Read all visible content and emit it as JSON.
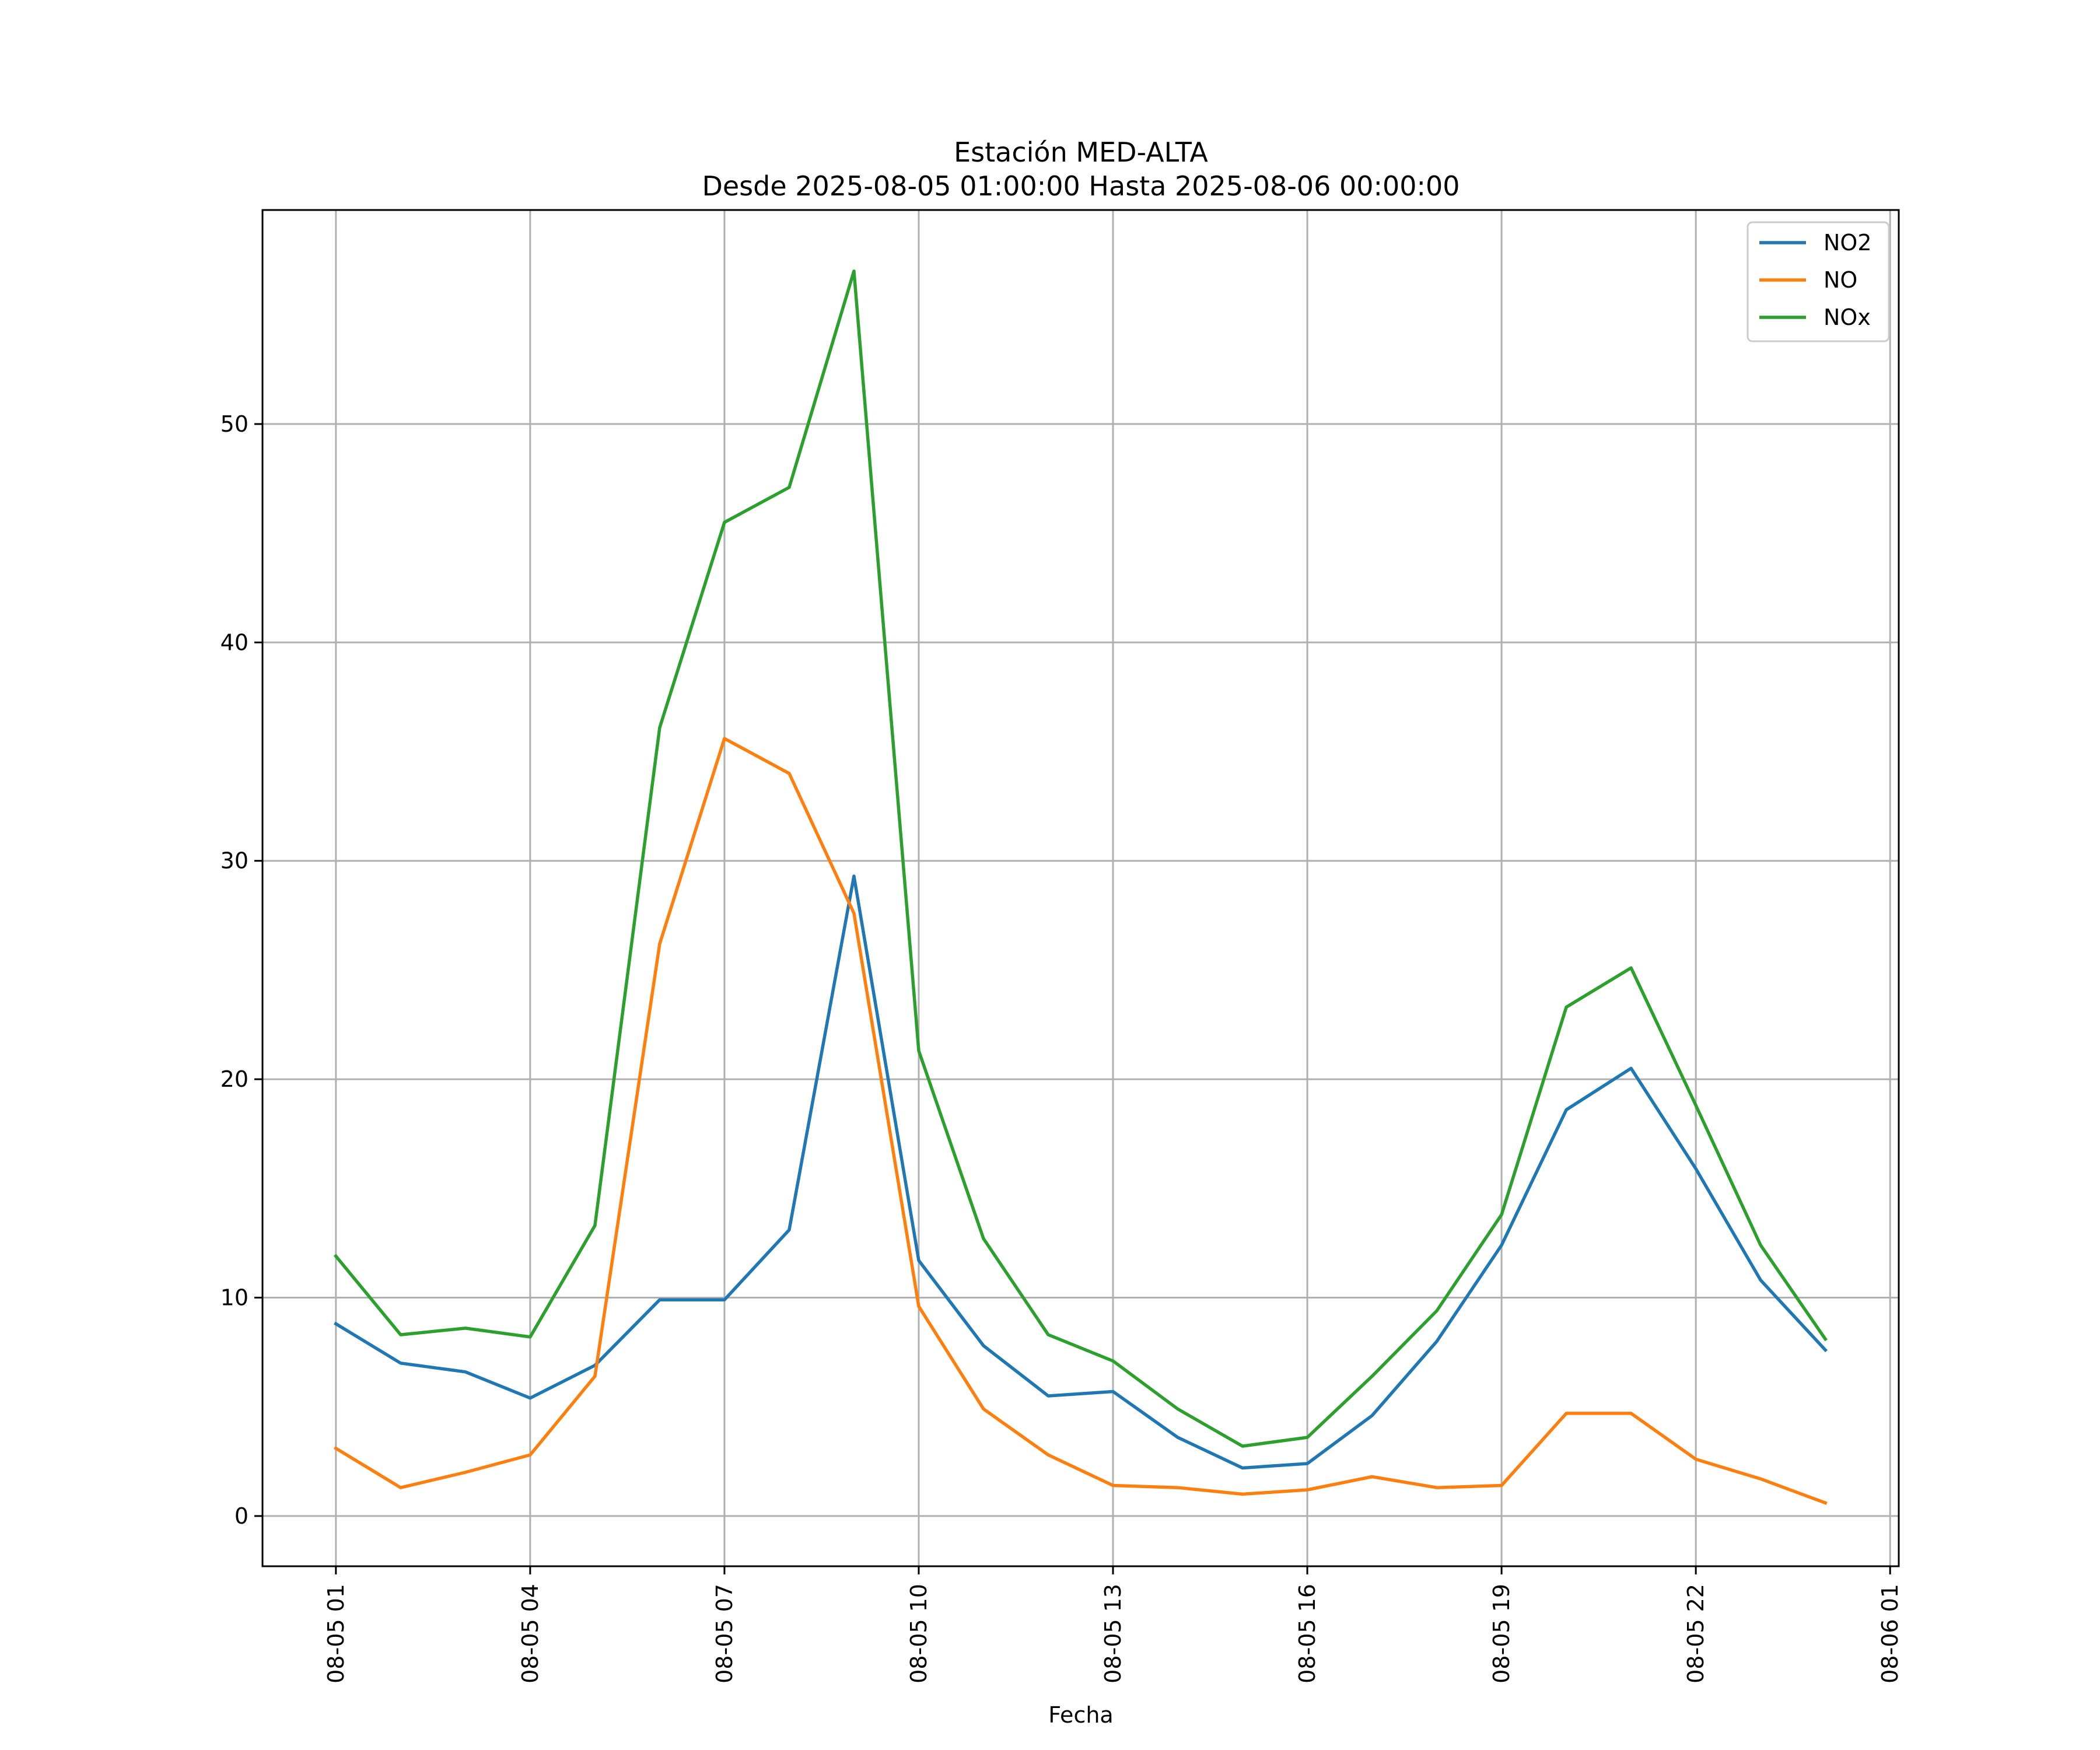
{
  "chart_data": {
    "type": "line",
    "title": "Estación MED-ALTA",
    "subtitle": "Desde 2025-08-05 01:00:00 Hasta 2025-08-06 00:00:00",
    "xlabel": "Fecha",
    "ylabel": "",
    "x": [
      "2025-08-05 01:00",
      "2025-08-05 02:00",
      "2025-08-05 03:00",
      "2025-08-05 04:00",
      "2025-08-05 05:00",
      "2025-08-05 06:00",
      "2025-08-05 07:00",
      "2025-08-05 08:00",
      "2025-08-05 09:00",
      "2025-08-05 10:00",
      "2025-08-05 11:00",
      "2025-08-05 12:00",
      "2025-08-05 13:00",
      "2025-08-05 14:00",
      "2025-08-05 15:00",
      "2025-08-05 16:00",
      "2025-08-05 17:00",
      "2025-08-05 18:00",
      "2025-08-05 19:00",
      "2025-08-05 20:00",
      "2025-08-05 21:00",
      "2025-08-05 22:00",
      "2025-08-05 23:00",
      "2025-08-06 00:00"
    ],
    "xlim": [
      "2025-08-04 23:52",
      "2025-08-06 01:08"
    ],
    "ylim": [
      -2.3,
      59.8
    ],
    "x_ticks": [
      "08-05 01",
      "08-05 04",
      "08-05 07",
      "08-05 10",
      "08-05 13",
      "08-05 16",
      "08-05 19",
      "08-05 22",
      "08-06 01"
    ],
    "x_tick_values": [
      "2025-08-05 01:00",
      "2025-08-05 04:00",
      "2025-08-05 07:00",
      "2025-08-05 10:00",
      "2025-08-05 13:00",
      "2025-08-05 16:00",
      "2025-08-05 19:00",
      "2025-08-05 22:00",
      "2025-08-06 01:00"
    ],
    "y_ticks": [
      0,
      10,
      20,
      30,
      40,
      50
    ],
    "grid": true,
    "legend_position": "top-right",
    "series": [
      {
        "name": "NO2",
        "color": "#1f77b4",
        "values": [
          8.8,
          7.0,
          6.6,
          5.4,
          6.9,
          9.9,
          9.9,
          13.1,
          29.3,
          11.7,
          7.8,
          5.5,
          5.7,
          3.6,
          2.2,
          2.4,
          4.6,
          8.0,
          12.4,
          18.6,
          20.5,
          15.9,
          10.8,
          7.6
        ]
      },
      {
        "name": "NO",
        "color": "#ff7f0e",
        "values": [
          3.1,
          1.3,
          2.0,
          2.8,
          6.4,
          26.2,
          35.6,
          34.0,
          27.6,
          9.6,
          4.9,
          2.8,
          1.4,
          1.3,
          1.0,
          1.2,
          1.8,
          1.3,
          1.4,
          4.7,
          4.7,
          2.6,
          1.7,
          0.6
        ]
      },
      {
        "name": "NOx",
        "color": "#2ca02c",
        "values": [
          11.9,
          8.3,
          8.6,
          8.2,
          13.3,
          36.1,
          45.5,
          47.1,
          57.0,
          21.3,
          12.7,
          8.3,
          7.1,
          4.9,
          3.2,
          3.6,
          6.4,
          9.4,
          13.8,
          23.3,
          25.1,
          18.8,
          12.4,
          8.1
        ]
      }
    ]
  }
}
